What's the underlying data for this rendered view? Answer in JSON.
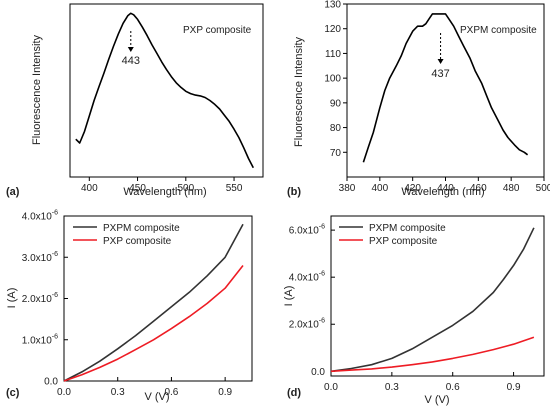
{
  "chart_data": [
    {
      "panel": "(a)",
      "type": "line",
      "xlabel": "Wavelength (nm)",
      "ylabel": "Fluorescence Intensity",
      "xlim": [
        380,
        580
      ],
      "xticks": [
        400,
        450,
        500,
        550
      ],
      "yticks": [],
      "legend_text": "PXP composite",
      "annotations": [
        {
          "text": "443",
          "x": 443
        }
      ],
      "series": [
        {
          "color": "#000000",
          "x": [
            386,
            390,
            395,
            400,
            405,
            410,
            415,
            420,
            425,
            430,
            435,
            440,
            443,
            446,
            450,
            455,
            460,
            465,
            470,
            475,
            480,
            485,
            490,
            495,
            500,
            505,
            510,
            515,
            520,
            525,
            530,
            535,
            540,
            545,
            550,
            555,
            560,
            565,
            570
          ],
          "values": [
            45,
            40,
            55,
            75,
            95,
            113,
            130,
            148,
            165,
            181,
            195,
            205,
            208,
            206,
            200,
            190,
            179,
            167,
            156,
            145,
            135,
            126,
            118,
            112,
            107,
            104,
            102,
            101,
            99,
            95,
            90,
            84,
            76,
            68,
            58,
            47,
            34,
            20,
            8
          ]
        }
      ]
    },
    {
      "panel": "(b)",
      "type": "line",
      "xlabel": "Wavelength (nm)",
      "ylabel": "Fluorescence Intensity",
      "xlim": [
        380,
        500
      ],
      "ylim": [
        60,
        130
      ],
      "xticks": [
        380,
        400,
        420,
        440,
        460,
        480,
        500
      ],
      "yticks": [
        70,
        80,
        90,
        100,
        110,
        120,
        130
      ],
      "legend_text": "PXPM composite",
      "annotations": [
        {
          "text": "437",
          "x": 437
        }
      ],
      "series": [
        {
          "color": "#000000",
          "x": [
            390,
            393,
            396,
            400,
            403,
            406,
            410,
            413,
            416,
            420,
            423,
            426,
            428,
            430,
            432,
            435,
            437,
            440,
            442,
            445,
            448,
            451,
            455,
            458,
            462,
            465,
            468,
            472,
            475,
            478,
            482,
            485,
            488,
            490
          ],
          "values": [
            66,
            72,
            78,
            88,
            95,
            100,
            105,
            109,
            114,
            119,
            121,
            121,
            122,
            124,
            126,
            126,
            126,
            126,
            124,
            121,
            117,
            113,
            108,
            103,
            98,
            93,
            88,
            83,
            79,
            76,
            73,
            71,
            70,
            69
          ]
        }
      ]
    },
    {
      "panel": "(c)",
      "type": "line",
      "xlabel": "V (V)",
      "ylabel": "I (A)",
      "xlim": [
        0,
        1.05
      ],
      "ylim": [
        0,
        4.0
      ],
      "xticks": [
        "0.0",
        "0.3",
        "0.6",
        "0.9"
      ],
      "yticks": [
        "0.0",
        "1.0x10",
        "2.0x10",
        "3.0x10",
        "4.0x10"
      ],
      "ytick_exponent": "-6",
      "y_unit_multiplier": "1e-6",
      "series": [
        {
          "name": "PXPM composite",
          "color": "#333333",
          "x": [
            0,
            0.1,
            0.2,
            0.3,
            0.4,
            0.5,
            0.6,
            0.7,
            0.8,
            0.9,
            1.0
          ],
          "values": [
            0,
            0.22,
            0.48,
            0.78,
            1.1,
            1.45,
            1.8,
            2.15,
            2.55,
            3.0,
            3.8
          ]
        },
        {
          "name": "PXP composite",
          "color": "#ee1c24",
          "x": [
            0,
            0.1,
            0.2,
            0.3,
            0.4,
            0.5,
            0.6,
            0.7,
            0.8,
            0.9,
            1.0
          ],
          "values": [
            0,
            0.15,
            0.33,
            0.53,
            0.76,
            1.0,
            1.27,
            1.56,
            1.88,
            2.25,
            2.8
          ]
        }
      ]
    },
    {
      "panel": "(d)",
      "type": "line",
      "xlabel": "V (V)",
      "ylabel": "I (A)",
      "xlim": [
        0,
        1.05
      ],
      "ylim": [
        -0.2,
        6.6
      ],
      "xticks": [
        "0.0",
        "0.3",
        "0.6",
        "0.9"
      ],
      "yticks": [
        "0.0",
        "2.0x10",
        "4.0x10",
        "6.0x10"
      ],
      "ytick_exponent": "-6",
      "y_unit_multiplier": "1e-6",
      "series": [
        {
          "name": "PXPM composite",
          "color": "#333333",
          "x": [
            0,
            0.1,
            0.2,
            0.3,
            0.4,
            0.5,
            0.6,
            0.7,
            0.8,
            0.85,
            0.9,
            0.95,
            1.0
          ],
          "values": [
            0,
            0.12,
            0.28,
            0.55,
            0.95,
            1.45,
            1.95,
            2.55,
            3.35,
            3.9,
            4.5,
            5.2,
            6.1
          ]
        },
        {
          "name": "PXP composite",
          "color": "#ee1c24",
          "x": [
            0,
            0.1,
            0.2,
            0.3,
            0.4,
            0.5,
            0.6,
            0.7,
            0.8,
            0.9,
            1.0
          ],
          "values": [
            0,
            0.05,
            0.1,
            0.18,
            0.28,
            0.4,
            0.55,
            0.72,
            0.92,
            1.15,
            1.45
          ]
        }
      ]
    }
  ]
}
